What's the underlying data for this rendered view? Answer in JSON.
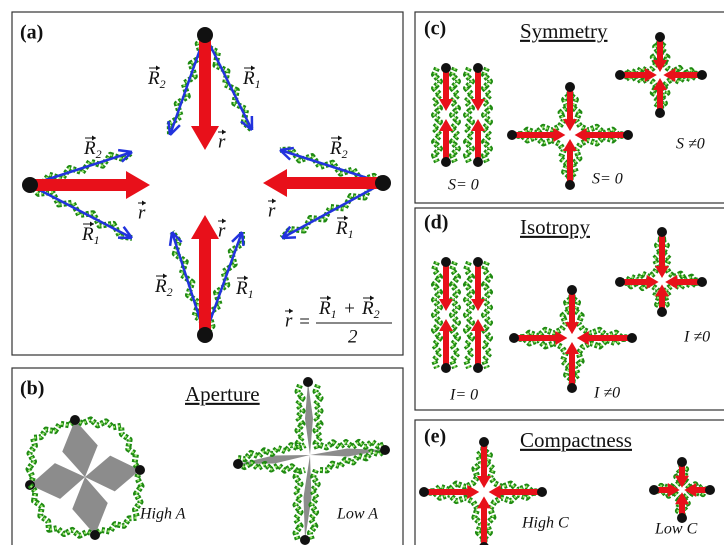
{
  "panel_a": {
    "label": "(a)",
    "vector_r": "r",
    "vector_R": "R",
    "sub_1": "1",
    "sub_2": "2",
    "formula": {
      "equals": "=",
      "plus": "+",
      "denominator": "2"
    }
  },
  "panel_b": {
    "label": "(b)",
    "title": "Aperture",
    "captions": [
      "High A",
      "Low A"
    ]
  },
  "panel_c": {
    "label": "(c)",
    "title": "Symmetry",
    "captions": [
      "S= 0",
      "S= 0",
      "S ≠0"
    ]
  },
  "panel_d": {
    "label": "(d)",
    "title": "Isotropy",
    "captions": [
      "I= 0",
      "I ≠0",
      "I ≠0"
    ]
  },
  "panel_e": {
    "label": "(e)",
    "title": "Compactness",
    "captions": [
      "High C",
      "Low C"
    ]
  }
}
